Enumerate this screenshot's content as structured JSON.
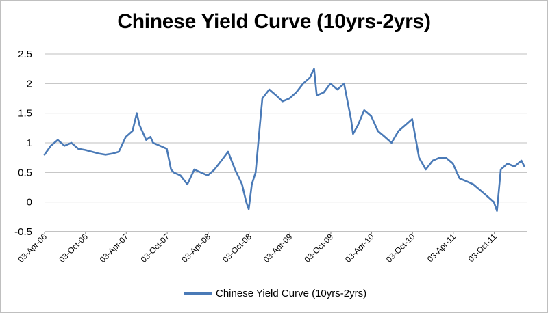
{
  "chart_data": {
    "type": "line",
    "title": "Chinese Yield Curve (10yrs-2yrs)",
    "xlabel": "",
    "ylabel": "",
    "ylim": [
      -0.5,
      2.5
    ],
    "yticks": [
      "2.5",
      "2",
      "1.5",
      "1",
      "0.5",
      "0",
      "-0.5"
    ],
    "ytick_values": [
      2.5,
      2,
      1.5,
      1,
      0.5,
      0,
      -0.5
    ],
    "xticks": [
      "03-Apr-06",
      "03-Oct-06",
      "03-Apr-07",
      "03-Oct-07",
      "03-Apr-08",
      "03-Oct-08",
      "03-Apr-09",
      "03-Oct-09",
      "03-Apr-10",
      "03-Oct-10",
      "03-Apr-11",
      "03-Oct-11"
    ],
    "grid": true,
    "legend_position": "bottom",
    "series": [
      {
        "name": "Chinese Yield Curve (10yrs-2yrs)",
        "color": "#4a7ab7",
        "x": [
          "2006-04-03",
          "2006-05-01",
          "2006-06-01",
          "2006-07-01",
          "2006-08-01",
          "2006-09-01",
          "2006-10-01",
          "2006-11-01",
          "2006-12-01",
          "2007-01-01",
          "2007-02-01",
          "2007-03-01",
          "2007-04-01",
          "2007-05-01",
          "2007-05-20",
          "2007-06-01",
          "2007-07-01",
          "2007-07-20",
          "2007-08-01",
          "2007-09-01",
          "2007-10-01",
          "2007-10-20",
          "2007-11-01",
          "2007-12-01",
          "2008-01-01",
          "2008-02-01",
          "2008-03-01",
          "2008-04-01",
          "2008-05-01",
          "2008-06-01",
          "2008-07-01",
          "2008-08-01",
          "2008-08-20",
          "2008-09-01",
          "2008-09-20",
          "2008-10-01",
          "2008-10-15",
          "2008-11-01",
          "2008-11-20",
          "2008-12-01",
          "2009-01-01",
          "2009-02-01",
          "2009-03-01",
          "2009-04-01",
          "2009-05-01",
          "2009-06-01",
          "2009-07-01",
          "2009-07-20",
          "2009-08-01",
          "2009-09-01",
          "2009-10-01",
          "2009-11-01",
          "2009-12-01",
          "2010-01-01",
          "2010-01-10",
          "2010-02-01",
          "2010-03-01",
          "2010-04-01",
          "2010-05-01",
          "2010-06-01",
          "2010-07-01",
          "2010-08-01",
          "2010-09-01",
          "2010-10-01",
          "2010-11-01",
          "2010-12-01",
          "2011-01-01",
          "2011-02-01",
          "2011-03-01",
          "2011-04-01",
          "2011-05-01",
          "2011-06-01",
          "2011-07-01",
          "2011-08-01",
          "2011-09-01",
          "2011-10-01",
          "2011-10-15",
          "2011-11-01",
          "2011-12-01",
          "2012-01-01",
          "2012-02-01",
          "2012-02-15"
        ],
        "values": [
          0.8,
          0.95,
          1.05,
          0.95,
          1.0,
          0.9,
          0.88,
          0.85,
          0.82,
          0.8,
          0.82,
          0.85,
          1.1,
          1.2,
          1.5,
          1.3,
          1.05,
          1.1,
          1.0,
          0.95,
          0.9,
          0.55,
          0.5,
          0.45,
          0.3,
          0.55,
          0.5,
          0.45,
          0.55,
          0.7,
          0.85,
          0.55,
          0.4,
          0.3,
          0.0,
          -0.12,
          0.3,
          0.5,
          1.3,
          1.75,
          1.9,
          1.8,
          1.7,
          1.75,
          1.85,
          2.0,
          2.1,
          2.25,
          1.8,
          1.85,
          2.0,
          1.9,
          2.0,
          1.4,
          1.15,
          1.3,
          1.55,
          1.45,
          1.2,
          1.1,
          1.0,
          1.2,
          1.3,
          1.4,
          0.75,
          0.55,
          0.7,
          0.75,
          0.75,
          0.65,
          0.4,
          0.35,
          0.3,
          0.2,
          0.1,
          0.0,
          -0.15,
          0.55,
          0.65,
          0.6,
          0.7,
          0.6
        ]
      }
    ]
  },
  "legend": {
    "label": "Chinese Yield Curve (10yrs-2yrs)"
  }
}
